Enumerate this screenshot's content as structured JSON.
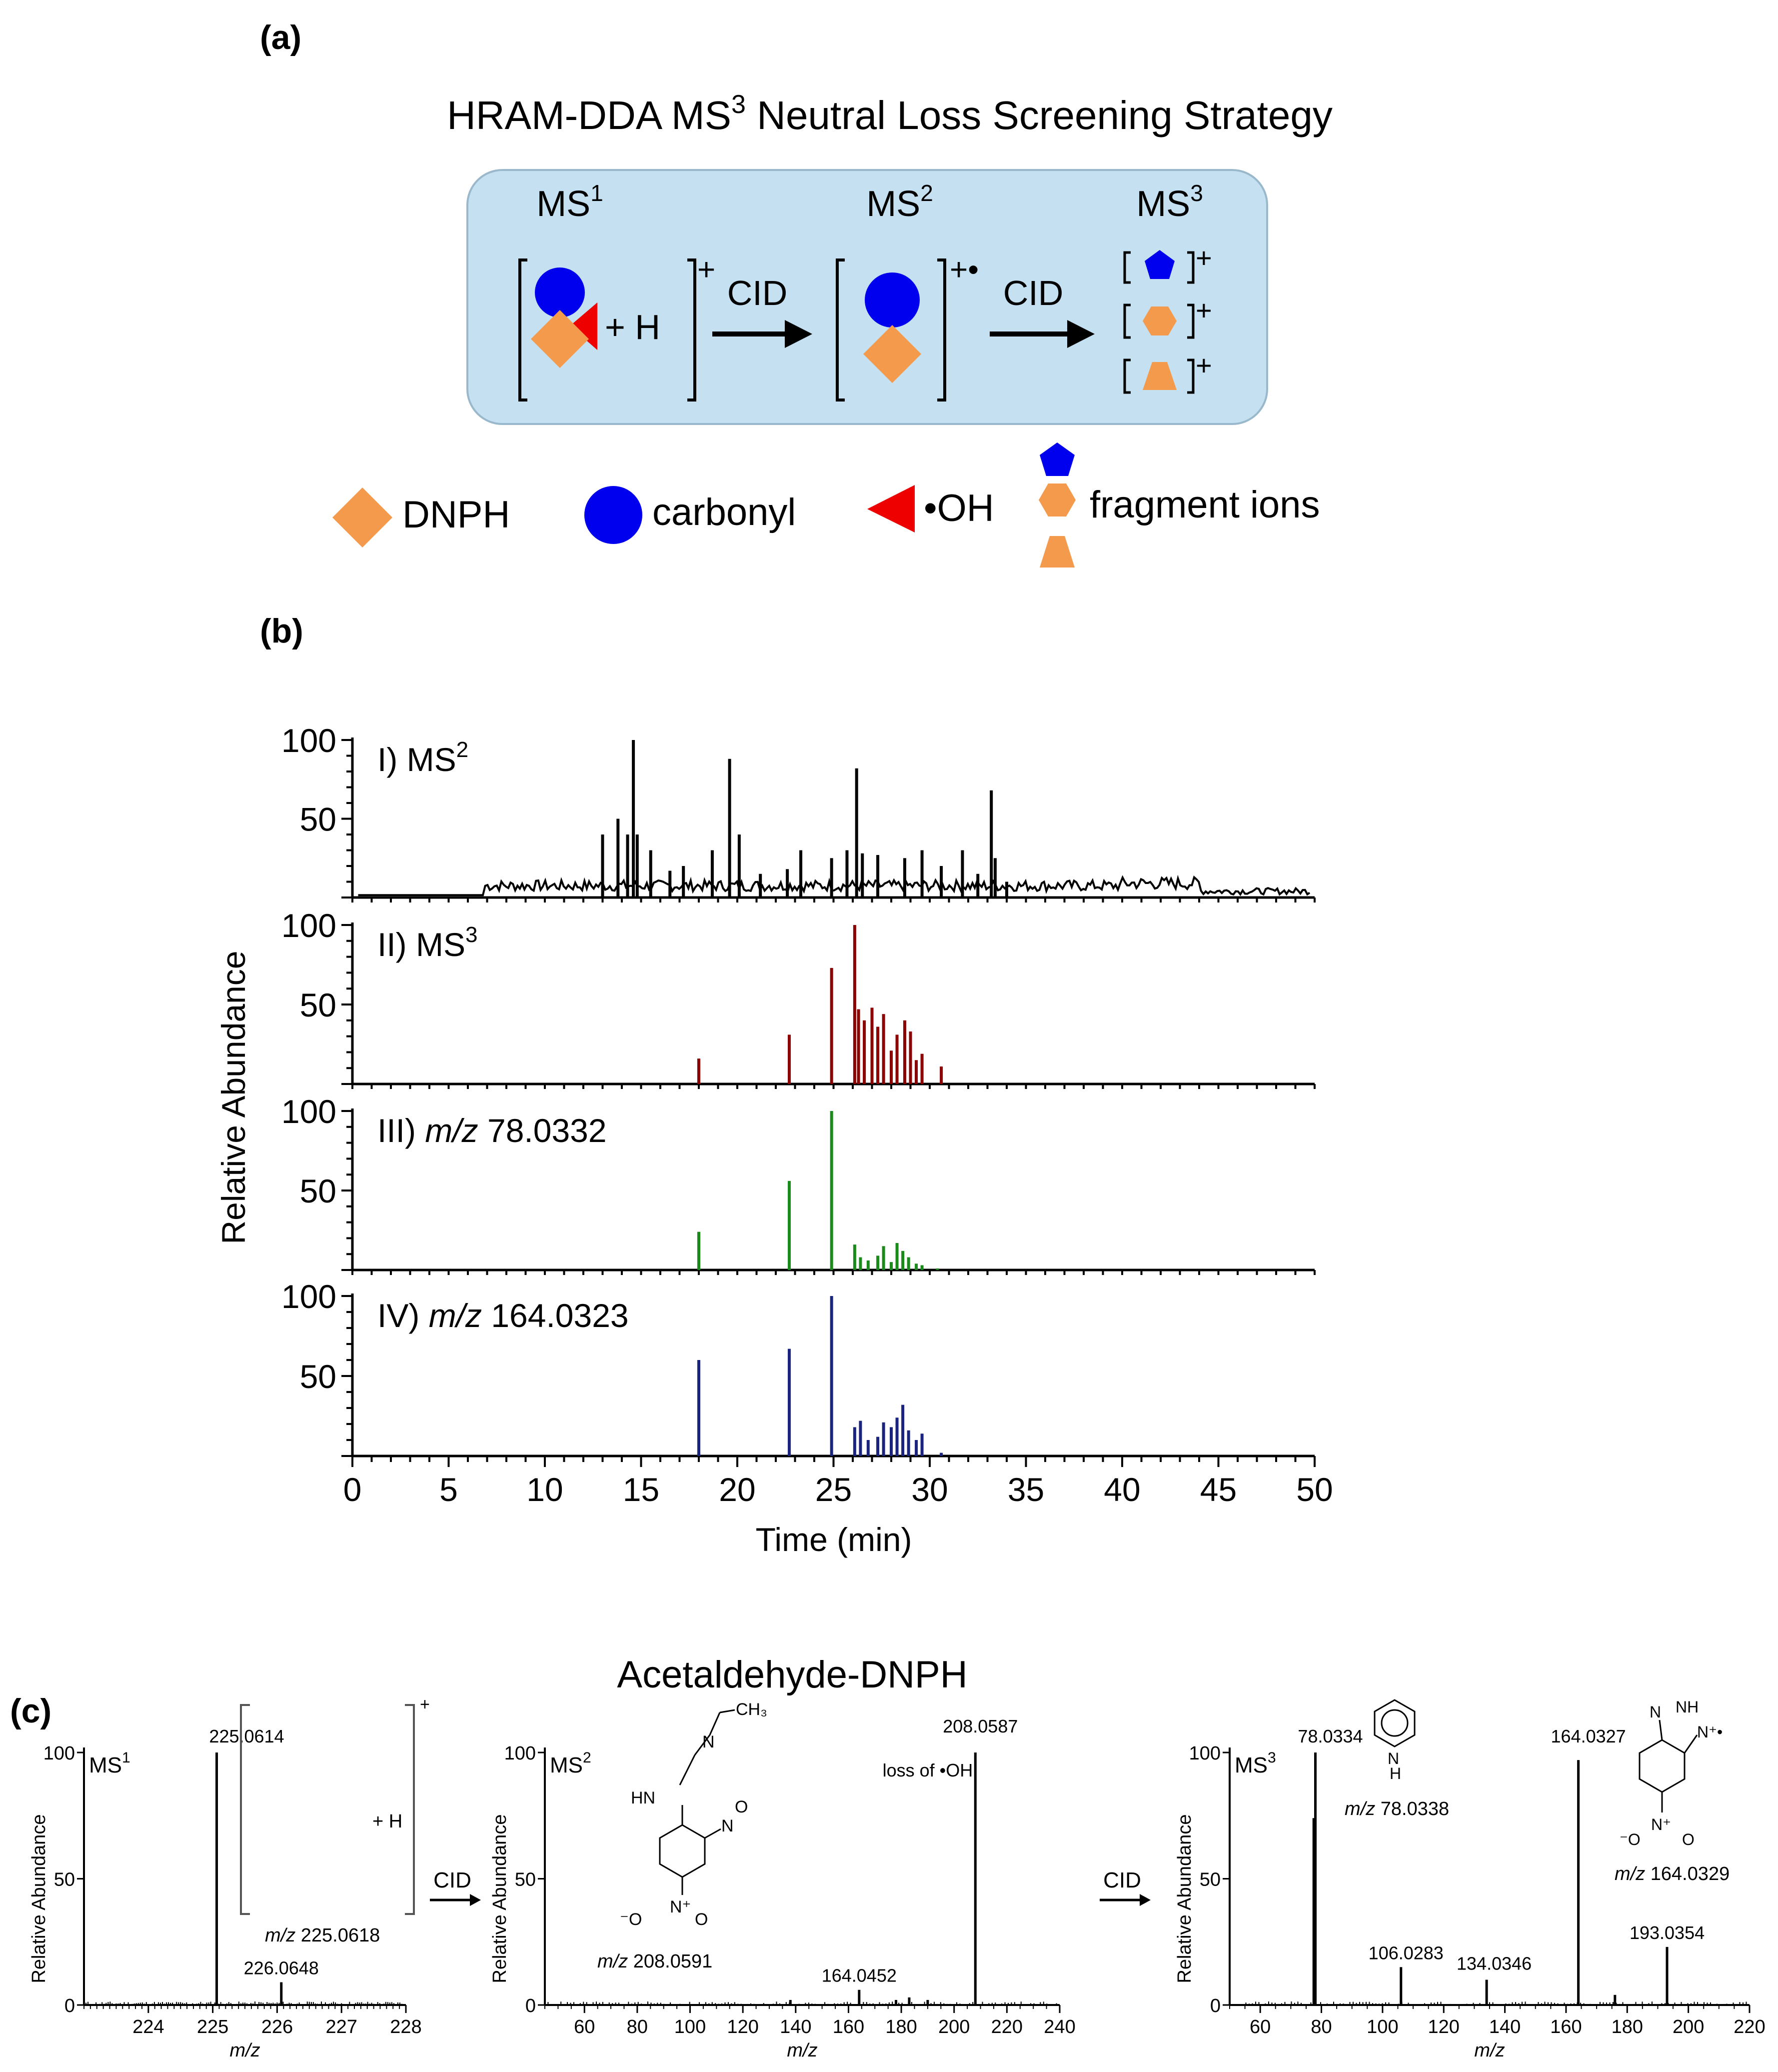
{
  "panel_a": {
    "label": "(a)",
    "title": "HRAM-DDA MS",
    "title_sup": "3",
    "title_rest": " Neutral Loss Screening Strategy",
    "stages": [
      {
        "base": "MS",
        "sup": "1"
      },
      {
        "base": "MS",
        "sup": "2"
      },
      {
        "base": "MS",
        "sup": "3"
      }
    ],
    "plus_h": "+ H",
    "cid": "CID",
    "charge_plus": "+",
    "charge_radical": "+•",
    "legend": {
      "dnph": "DNPH",
      "carbonyl": "carbonyl",
      "oh": "•OH",
      "fragments": "fragment ions"
    },
    "colors": {
      "box": "#c5e0f0",
      "blue": "#0000ee",
      "orange": "#f39a4c",
      "red": "#ee0000"
    }
  },
  "panel_b": {
    "label": "(b)",
    "ylabel": "Relative Abundance",
    "xlabel": "Time (min)",
    "ytick_labels": [
      "100",
      "50"
    ],
    "xtick_labels": [
      "0",
      "5",
      "10",
      "15",
      "20",
      "25",
      "30",
      "35",
      "40",
      "45",
      "50"
    ],
    "trace_labels": [
      {
        "roman": "I) ",
        "italic": "",
        "text": "MS",
        "sup": "2"
      },
      {
        "roman": "II) ",
        "italic": "",
        "text": "MS",
        "sup": "3"
      },
      {
        "roman": "III) ",
        "italic": "m/z",
        "text": " 78.0332",
        "sup": ""
      },
      {
        "roman": "IV) ",
        "italic": "m/z",
        "text": " 164.0323",
        "sup": ""
      }
    ]
  },
  "panel_c": {
    "label": "(c)",
    "title": "Acetaldehyde-DNPH",
    "cid": "CID",
    "ylabel": "Relative Abundance",
    "xlabel": "m/z",
    "ytick_labels": [
      "100",
      "50",
      "0"
    ],
    "ms1": {
      "tag": "MS",
      "sup": "1",
      "peaks": [
        "225.0614",
        "226.0648"
      ],
      "note": "m/z 225.0618",
      "plus_h": "+ H",
      "charge": "+",
      "xticks": [
        "224",
        "225",
        "226",
        "227",
        "228"
      ]
    },
    "ms2": {
      "tag": "MS",
      "sup": "2",
      "peaks": [
        "208.0587",
        "164.0452"
      ],
      "note": "loss of •OH",
      "formula": "m/z 208.0591",
      "xticks": [
        "60",
        "80",
        "100",
        "120",
        "140",
        "160",
        "180",
        "200",
        "220",
        "240"
      ]
    },
    "ms3": {
      "tag": "MS",
      "sup": "3",
      "peaks": [
        "78.0334",
        "106.0283",
        "134.0346",
        "164.0327",
        "193.0354"
      ],
      "notes": [
        "m/z 78.0338",
        "m/z 164.0329"
      ],
      "xticks": [
        "60",
        "80",
        "100",
        "120",
        "140",
        "160",
        "180",
        "200",
        "220"
      ]
    }
  },
  "chart_data": [
    {
      "type": "bar",
      "title": "I) MS2",
      "xlabel": "Time (min)",
      "ylabel": "Relative Abundance",
      "xlim": [
        0,
        50
      ],
      "ylim": [
        0,
        100
      ],
      "series": [
        {
          "name": "MS2",
          "color": "#000000",
          "x": [
            13,
            13.8,
            14.3,
            14.6,
            14.8,
            15.5,
            16.5,
            17.2,
            18.7,
            19.6,
            20.1,
            21.2,
            22.6,
            23.3,
            24.9,
            25.7,
            26.2,
            26.5,
            27.3,
            28.7,
            29.6,
            30.6,
            31.7,
            32.5,
            33.2,
            33.4,
            34.0
          ],
          "values": [
            40,
            50,
            40,
            100,
            40,
            30,
            17,
            20,
            30,
            88,
            40,
            15,
            18,
            30,
            25,
            30,
            82,
            28,
            27,
            25,
            30,
            20,
            30,
            15,
            68,
            25,
            10
          ]
        }
      ]
    },
    {
      "type": "bar",
      "title": "II) MS3",
      "xlabel": "Time (min)",
      "ylabel": "Relative Abundance",
      "xlim": [
        0,
        50
      ],
      "ylim": [
        0,
        100
      ],
      "series": [
        {
          "name": "MS3",
          "color": "#8b0000",
          "x": [
            18.0,
            22.7,
            24.9,
            26.1,
            26.3,
            26.6,
            27.0,
            27.3,
            27.6,
            28.0,
            28.3,
            28.7,
            29.0,
            29.3,
            29.6,
            30.6
          ],
          "values": [
            16,
            31,
            73,
            100,
            47,
            40,
            48,
            36,
            44,
            21,
            31,
            40,
            33,
            15,
            19,
            11
          ]
        }
      ]
    },
    {
      "type": "bar",
      "title": "III) m/z 78.0332",
      "xlabel": "Time (min)",
      "ylabel": "Relative Abundance",
      "xlim": [
        0,
        50
      ],
      "ylim": [
        0,
        100
      ],
      "series": [
        {
          "name": "m/z 78.0332",
          "color": "#1a8a1a",
          "x": [
            18.0,
            22.7,
            24.9,
            26.1,
            26.4,
            26.8,
            27.3,
            27.6,
            28.0,
            28.3,
            28.6,
            28.9,
            29.3,
            29.6,
            30.4
          ],
          "values": [
            24,
            56,
            100,
            16,
            8,
            6,
            9,
            15,
            5,
            17,
            12,
            8,
            4,
            3,
            1
          ]
        }
      ]
    },
    {
      "type": "bar",
      "title": "IV) m/z 164.0323",
      "xlabel": "Time (min)",
      "ylabel": "Relative Abundance",
      "xlim": [
        0,
        50
      ],
      "ylim": [
        0,
        100
      ],
      "series": [
        {
          "name": "m/z 164.0323",
          "color": "#1a237e",
          "x": [
            18.0,
            22.7,
            24.9,
            26.1,
            26.4,
            26.8,
            27.3,
            27.6,
            28.0,
            28.3,
            28.6,
            28.9,
            29.3,
            29.6,
            30.6
          ],
          "values": [
            60,
            67,
            100,
            18,
            22,
            10,
            12,
            21,
            18,
            24,
            32,
            16,
            10,
            14,
            2
          ]
        }
      ]
    },
    {
      "type": "bar",
      "title": "MS1",
      "xlabel": "m/z",
      "ylabel": "Relative Abundance",
      "xlim": [
        223,
        228
      ],
      "ylim": [
        0,
        100
      ],
      "series": [
        {
          "name": "MS1",
          "color": "#000000",
          "x": [
            225.0614,
            226.0648
          ],
          "values": [
            100,
            9
          ]
        }
      ]
    },
    {
      "type": "bar",
      "title": "MS2",
      "xlabel": "m/z",
      "ylabel": "Relative Abundance",
      "xlim": [
        45,
        240
      ],
      "ylim": [
        0,
        100
      ],
      "series": [
        {
          "name": "MS2",
          "color": "#000000",
          "x": [
            138,
            164.0452,
            178,
            183,
            190,
            208.0587
          ],
          "values": [
            2,
            6,
            2,
            3,
            2,
            100
          ]
        }
      ]
    },
    {
      "type": "bar",
      "title": "MS3",
      "xlabel": "m/z",
      "ylabel": "Relative Abundance",
      "xlim": [
        50,
        220
      ],
      "ylim": [
        0,
        100
      ],
      "series": [
        {
          "name": "MS3",
          "color": "#000000",
          "x": [
            77.5,
            78.0334,
            106.0283,
            134.0346,
            164.0327,
            176,
            193.0354
          ],
          "values": [
            74,
            100,
            15,
            10,
            97,
            4,
            23
          ]
        }
      ]
    }
  ]
}
